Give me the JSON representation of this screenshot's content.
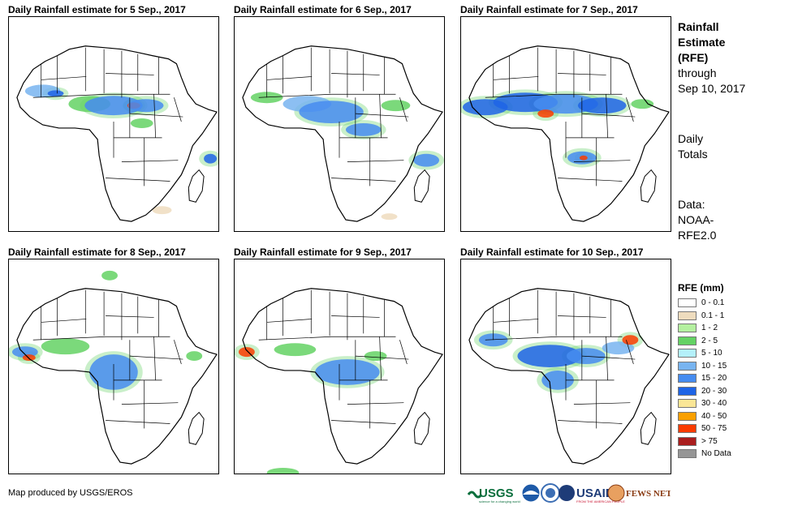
{
  "panels": [
    {
      "title": "Daily Rainfall estimate for 5 Sep., 2017"
    },
    {
      "title": "Daily Rainfall estimate for 6 Sep., 2017"
    },
    {
      "title": "Daily Rainfall estimate for 7 Sep., 2017"
    },
    {
      "title": "Daily Rainfall estimate for 8 Sep., 2017"
    },
    {
      "title": "Daily Rainfall estimate for 9 Sep., 2017"
    },
    {
      "title": "Daily Rainfall estimate for 10 Sep., 2017"
    }
  ],
  "side": {
    "title_line1": "Rainfall",
    "title_line2": "Estimate",
    "title_line3": "(RFE)",
    "through": "through",
    "through_date": "Sep 10, 2017",
    "daily1": "Daily",
    "daily2": "Totals",
    "data_label": "Data:",
    "data_source1": "NOAA-",
    "data_source2": "RFE2.0"
  },
  "legend": {
    "title": "RFE (mm)",
    "items": [
      {
        "label": "0 - 0.1",
        "color": "#ffffff"
      },
      {
        "label": "0.1 - 1",
        "color": "#eedcbe"
      },
      {
        "label": "1 - 2",
        "color": "#b4f0a0"
      },
      {
        "label": "2 - 5",
        "color": "#64d264"
      },
      {
        "label": "5 - 10",
        "color": "#b4f0fa"
      },
      {
        "label": "10 - 15",
        "color": "#78b4f0"
      },
      {
        "label": "15 - 20",
        "color": "#468cf0"
      },
      {
        "label": "20 - 30",
        "color": "#1e64e6"
      },
      {
        "label": "30 - 40",
        "color": "#fae696"
      },
      {
        "label": "40 - 50",
        "color": "#faa000"
      },
      {
        "label": "50 - 75",
        "color": "#fa3c00"
      },
      {
        "label": "> 75",
        "color": "#aa1e1e"
      },
      {
        "label": "No Data",
        "color": "#969696"
      }
    ]
  },
  "credit": "Map produced by USGS/EROS",
  "logos": {
    "usgs": "USGS",
    "usgs_tagline": "science for a changing world",
    "usaid": "USAID",
    "usaid_tagline": "FROM THE AMERICAN PEOPLE",
    "fewsnet": "FEWS NET"
  }
}
